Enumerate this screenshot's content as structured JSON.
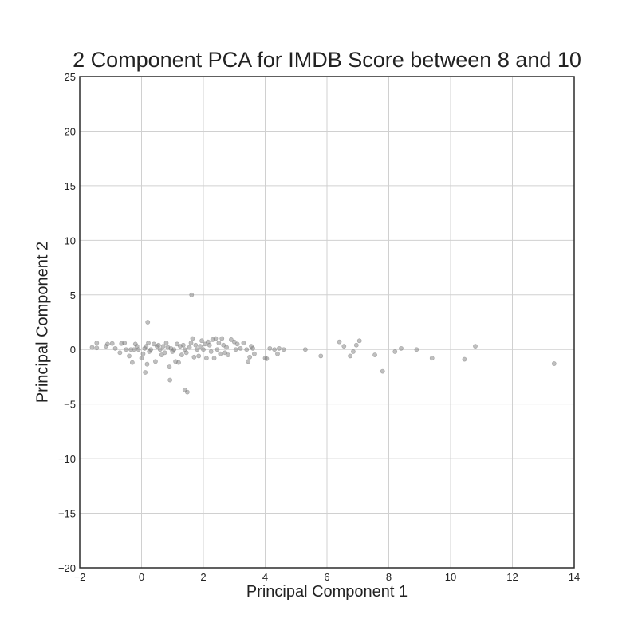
{
  "chart_data": {
    "type": "scatter",
    "title": "2 Component PCA for IMDB Score between 8 and 10",
    "xlabel": "Principal Component 1",
    "ylabel": "Principal Component 2",
    "xlim": [
      -2,
      14
    ],
    "ylim": [
      -20,
      25
    ],
    "xticks": [
      "−2",
      "0",
      "2",
      "4",
      "6",
      "8",
      "10",
      "12",
      "14"
    ],
    "xtick_values": [
      -2,
      0,
      2,
      4,
      6,
      8,
      10,
      12,
      14
    ],
    "yticks": [
      "−20",
      "−15",
      "−10",
      "−5",
      "0",
      "5",
      "10",
      "15",
      "20",
      "25"
    ],
    "ytick_values": [
      -20,
      -15,
      -10,
      -5,
      0,
      5,
      10,
      15,
      20,
      25
    ],
    "grid": true,
    "marker_color": "#808080",
    "points": [
      [
        -1.6,
        0.2
      ],
      [
        -1.45,
        0.6
      ],
      [
        -1.45,
        0.15
      ],
      [
        -1.15,
        0.3
      ],
      [
        -1.1,
        0.5
      ],
      [
        -0.95,
        0.55
      ],
      [
        -0.85,
        0.1
      ],
      [
        -0.7,
        -0.3
      ],
      [
        -0.65,
        0.55
      ],
      [
        -0.55,
        0.6
      ],
      [
        -0.5,
        0.0
      ],
      [
        -0.4,
        -0.6
      ],
      [
        -0.35,
        0.0
      ],
      [
        -0.3,
        -1.2
      ],
      [
        -0.25,
        0.0
      ],
      [
        -0.2,
        0.5
      ],
      [
        -0.15,
        0.3
      ],
      [
        -0.1,
        0.0
      ],
      [
        0.0,
        -0.8
      ],
      [
        0.05,
        -0.4
      ],
      [
        0.1,
        0.1
      ],
      [
        0.12,
        -2.1
      ],
      [
        0.15,
        0.3
      ],
      [
        0.18,
        -1.35
      ],
      [
        0.22,
        0.6
      ],
      [
        0.2,
        2.5
      ],
      [
        0.25,
        -0.2
      ],
      [
        0.3,
        0.0
      ],
      [
        0.4,
        0.5
      ],
      [
        0.45,
        -1.1
      ],
      [
        0.5,
        0.3
      ],
      [
        0.55,
        0.4
      ],
      [
        0.6,
        0.0
      ],
      [
        0.65,
        -0.5
      ],
      [
        0.7,
        0.3
      ],
      [
        0.75,
        -0.3
      ],
      [
        0.8,
        0.6
      ],
      [
        0.85,
        0.2
      ],
      [
        0.9,
        -1.6
      ],
      [
        0.92,
        -2.8
      ],
      [
        0.95,
        0.1
      ],
      [
        1.0,
        -0.2
      ],
      [
        1.05,
        0.0
      ],
      [
        1.1,
        -1.1
      ],
      [
        1.15,
        0.5
      ],
      [
        1.2,
        -1.2
      ],
      [
        1.25,
        0.3
      ],
      [
        1.3,
        -0.5
      ],
      [
        1.35,
        0.4
      ],
      [
        1.4,
        0.0
      ],
      [
        1.45,
        -0.3
      ],
      [
        1.4,
        -3.7
      ],
      [
        1.48,
        -3.9
      ],
      [
        1.55,
        0.2
      ],
      [
        1.6,
        0.6
      ],
      [
        1.62,
        5.0
      ],
      [
        1.65,
        1.0
      ],
      [
        1.7,
        -0.7
      ],
      [
        1.75,
        0.4
      ],
      [
        1.8,
        0.0
      ],
      [
        1.85,
        -0.6
      ],
      [
        1.9,
        0.3
      ],
      [
        1.95,
        0.8
      ],
      [
        2.0,
        0.0
      ],
      [
        2.05,
        0.5
      ],
      [
        2.1,
        -0.8
      ],
      [
        2.15,
        0.7
      ],
      [
        2.2,
        0.4
      ],
      [
        2.25,
        -0.2
      ],
      [
        2.3,
        0.9
      ],
      [
        2.35,
        -0.8
      ],
      [
        2.4,
        1.0
      ],
      [
        2.45,
        0.0
      ],
      [
        2.5,
        0.6
      ],
      [
        2.55,
        -0.4
      ],
      [
        2.6,
        1.0
      ],
      [
        2.65,
        0.4
      ],
      [
        2.7,
        -0.3
      ],
      [
        2.75,
        0.2
      ],
      [
        2.8,
        -0.5
      ],
      [
        2.9,
        0.9
      ],
      [
        3.0,
        0.7
      ],
      [
        3.05,
        0.0
      ],
      [
        3.1,
        0.5
      ],
      [
        3.2,
        0.1
      ],
      [
        3.3,
        0.6
      ],
      [
        3.4,
        0.0
      ],
      [
        3.45,
        -1.1
      ],
      [
        3.5,
        -0.7
      ],
      [
        3.55,
        0.3
      ],
      [
        3.6,
        0.1
      ],
      [
        3.65,
        -0.4
      ],
      [
        4.0,
        -0.8
      ],
      [
        4.05,
        -0.85
      ],
      [
        4.15,
        0.1
      ],
      [
        4.3,
        0.0
      ],
      [
        4.4,
        -0.4
      ],
      [
        4.45,
        0.1
      ],
      [
        4.6,
        0.0
      ],
      [
        5.3,
        0.0
      ],
      [
        5.8,
        -0.6
      ],
      [
        6.4,
        0.7
      ],
      [
        6.55,
        0.3
      ],
      [
        6.75,
        -0.6
      ],
      [
        6.85,
        -0.2
      ],
      [
        6.95,
        0.4
      ],
      [
        7.05,
        0.8
      ],
      [
        7.55,
        -0.5
      ],
      [
        7.8,
        -2.0
      ],
      [
        8.2,
        -0.2
      ],
      [
        8.4,
        0.1
      ],
      [
        8.9,
        0.0
      ],
      [
        9.4,
        -0.8
      ],
      [
        10.45,
        -0.9
      ],
      [
        10.8,
        0.3
      ],
      [
        13.35,
        -1.3
      ]
    ]
  }
}
